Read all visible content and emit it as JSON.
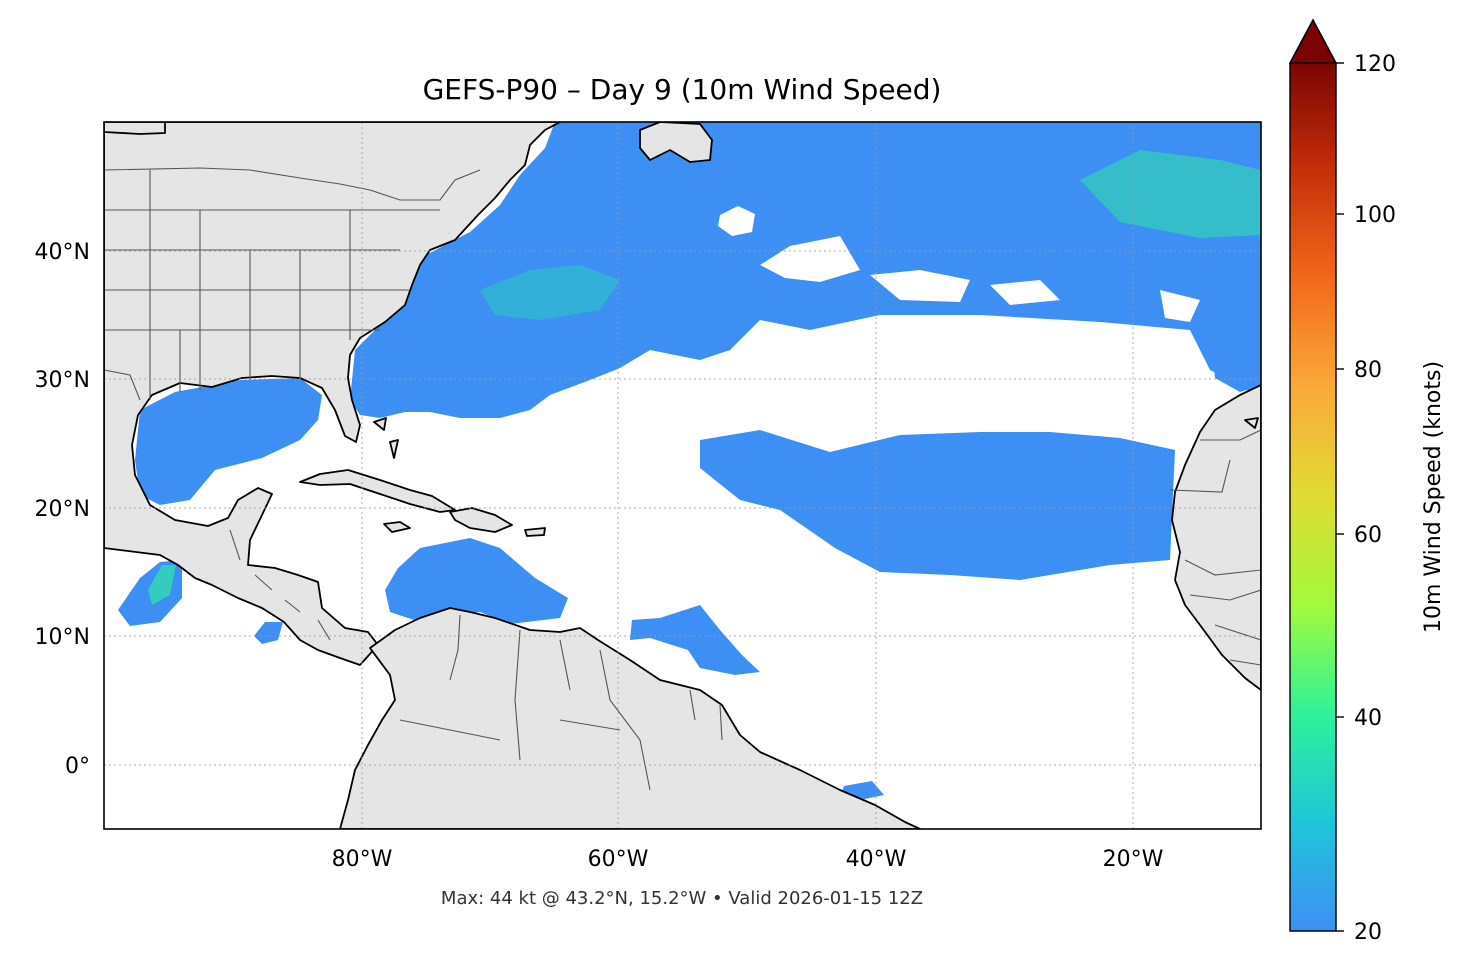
{
  "title": "GEFS-P90 – Day 9 (10m Wind Speed)",
  "footer": "Max: 44 kt @ 43.2°N, 15.2°W • Valid 2026-01-15 12Z",
  "map": {
    "lon_range": [
      -100,
      -10
    ],
    "lat_range": [
      -5,
      50
    ],
    "lon_ticks": [
      {
        "value": -80,
        "label": "80°W"
      },
      {
        "value": -60,
        "label": "60°W"
      },
      {
        "value": -40,
        "label": "40°W"
      },
      {
        "value": -20,
        "label": "20°W"
      }
    ],
    "lat_ticks": [
      {
        "value": 40,
        "label": "40°N"
      },
      {
        "value": 30,
        "label": "30°N"
      },
      {
        "value": 20,
        "label": "20°N"
      },
      {
        "value": 10,
        "label": "10°N"
      },
      {
        "value": 0,
        "label": "0°"
      }
    ],
    "land_color": "#e5e5e5",
    "gridlines": true
  },
  "colorbar": {
    "label": "10m Wind Speed (knots)",
    "range": [
      20,
      120
    ],
    "extend": "max",
    "ticks": [
      {
        "value": 20,
        "label": "20"
      },
      {
        "value": 40,
        "label": "40"
      },
      {
        "value": 60,
        "label": "60"
      },
      {
        "value": 80,
        "label": "80"
      },
      {
        "value": 100,
        "label": "100"
      },
      {
        "value": 120,
        "label": "120"
      }
    ],
    "colormap": "turbo",
    "colors": [
      "#3f8ff5",
      "#20c6d8",
      "#2ef29a",
      "#a3fa3c",
      "#e0dc34",
      "#fbaa3a",
      "#f26a1b",
      "#c6300a",
      "#7a0403"
    ]
  },
  "max_point": {
    "value_kt": 44,
    "lat": 43.2,
    "lon": -15.2
  }
}
